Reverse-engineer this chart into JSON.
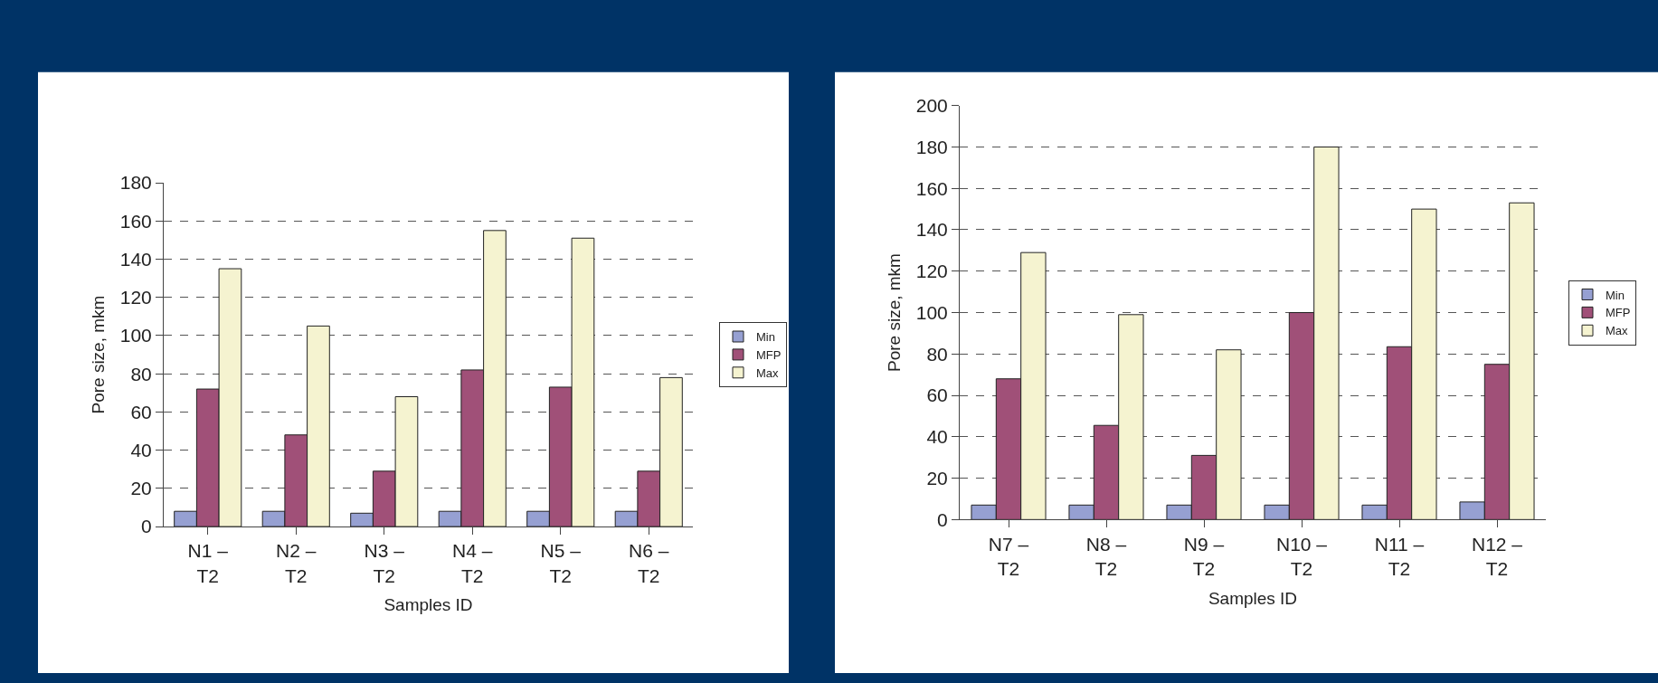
{
  "chart_data": [
    {
      "type": "bar",
      "xlabel": "Samples ID",
      "ylabel": "Pore size, mkm",
      "categories": [
        "N1 –\nT2",
        "N2 –\nT2",
        "N3 –\nT2",
        "N4 –\nT2",
        "N5 –\nT2",
        "N6 –\nT2"
      ],
      "series": [
        {
          "name": "Min",
          "color": "#96a0d2",
          "values": [
            8,
            8,
            7,
            8,
            8,
            8
          ]
        },
        {
          "name": "MFP",
          "color": "#a05078",
          "values": [
            72,
            48,
            29,
            82,
            73,
            29
          ]
        },
        {
          "name": "Max",
          "color": "#f5f3d0",
          "values": [
            135,
            105,
            68,
            155,
            151,
            78
          ]
        }
      ],
      "ylim": [
        0,
        180
      ],
      "yticks": [
        0,
        20,
        40,
        60,
        80,
        100,
        120,
        140,
        160,
        180
      ],
      "grid": "y",
      "legend": "right"
    },
    {
      "type": "bar",
      "xlabel": "Samples ID",
      "ylabel": "Pore size, mkm",
      "categories": [
        "N7 –\nT2",
        "N8 –\nT2",
        "N9 –\nT2",
        "N10 –\nT2",
        "N11 –\nT2",
        "N12 –\nT2"
      ],
      "series": [
        {
          "name": "Min",
          "color": "#96a0d2",
          "values": [
            7,
            7,
            7,
            7,
            7,
            8.5
          ]
        },
        {
          "name": "MFP",
          "color": "#a05078",
          "values": [
            68,
            45.5,
            31,
            100,
            83.5,
            75
          ]
        },
        {
          "name": "Max",
          "color": "#f5f3d0",
          "values": [
            129,
            99,
            82,
            180,
            150,
            153
          ]
        }
      ],
      "ylim": [
        0,
        200
      ],
      "yticks": [
        0,
        20,
        40,
        60,
        80,
        100,
        120,
        140,
        160,
        180,
        200
      ],
      "grid": "y",
      "legend": "right"
    }
  ]
}
